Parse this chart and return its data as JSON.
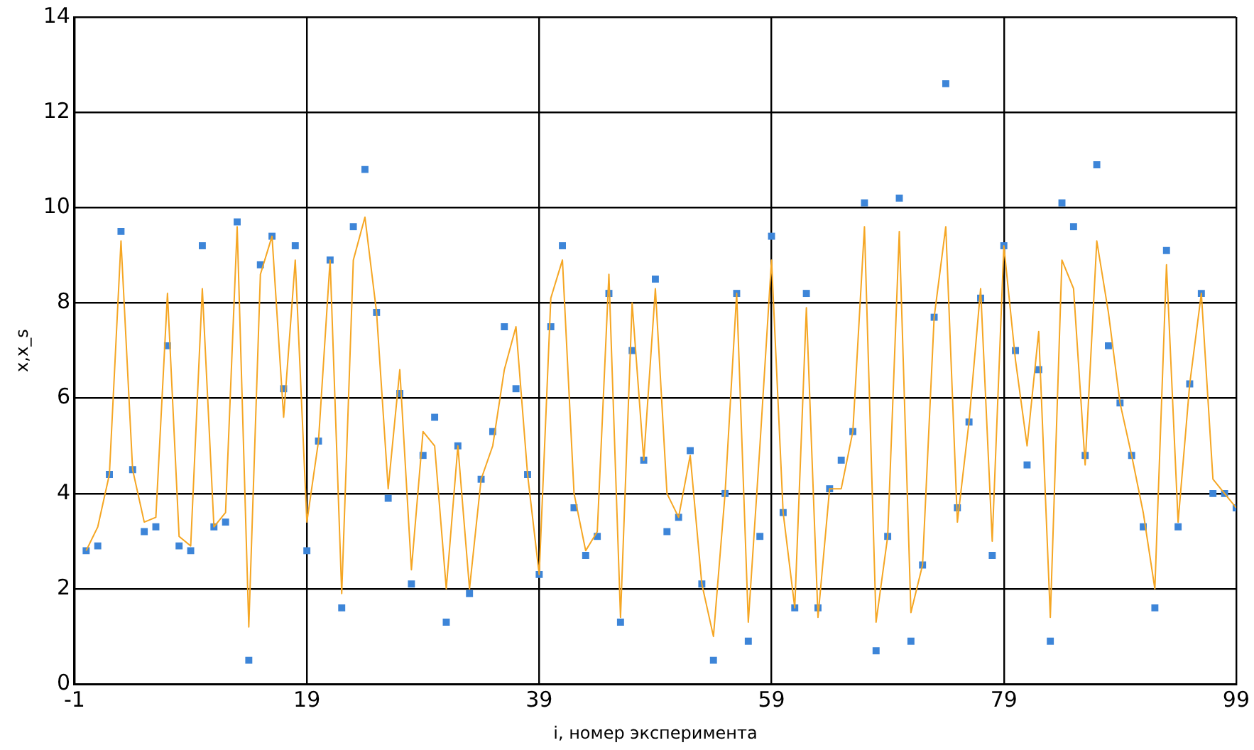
{
  "chart_data": {
    "type": "scatter",
    "xlabel": "i, номер эксперимента",
    "ylabel": "x,x_s",
    "grid": true,
    "legend": false,
    "xlim": [
      -1,
      99
    ],
    "xticks": [
      -1,
      19,
      39,
      59,
      79,
      99
    ],
    "ylim": [
      0,
      14
    ],
    "yticks": [
      0,
      2,
      4,
      6,
      8,
      10,
      12,
      14
    ],
    "x": [
      0,
      1,
      2,
      3,
      4,
      5,
      6,
      7,
      8,
      9,
      10,
      11,
      12,
      13,
      14,
      15,
      16,
      17,
      18,
      19,
      20,
      21,
      22,
      23,
      24,
      25,
      26,
      27,
      28,
      29,
      30,
      31,
      32,
      33,
      34,
      35,
      36,
      37,
      38,
      39,
      40,
      41,
      42,
      43,
      44,
      45,
      46,
      47,
      48,
      49,
      50,
      51,
      52,
      53,
      54,
      55,
      56,
      57,
      58,
      59,
      60,
      61,
      62,
      63,
      64,
      65,
      66,
      67,
      68,
      69,
      70,
      71,
      72,
      73,
      74,
      75,
      76,
      77,
      78,
      79,
      80,
      81,
      82,
      83,
      84,
      85,
      86,
      87,
      88,
      89,
      90,
      91,
      92,
      93,
      94,
      95,
      96,
      97,
      98,
      99
    ],
    "series": [
      {
        "type": "line",
        "color": "#f5a623",
        "marker": "none",
        "values": [
          2.8,
          3.3,
          4.4,
          9.3,
          4.5,
          3.4,
          3.5,
          8.2,
          3.1,
          2.9,
          8.3,
          3.3,
          3.6,
          9.6,
          1.2,
          8.6,
          9.4,
          5.6,
          8.9,
          3.4,
          5.1,
          8.9,
          1.9,
          8.9,
          9.8,
          7.8,
          4.1,
          6.6,
          2.4,
          5.3,
          5.0,
          2.0,
          5.0,
          2.0,
          4.3,
          5.0,
          6.6,
          7.5,
          4.4,
          2.3,
          8.1,
          8.9,
          4.0,
          2.8,
          3.2,
          8.6,
          1.4,
          8.0,
          4.7,
          8.3,
          4.0,
          3.5,
          4.8,
          2.1,
          1.0,
          4.0,
          8.2,
          1.3,
          5.0,
          8.9,
          3.6,
          1.6,
          7.9,
          1.4,
          4.1,
          4.1,
          5.3,
          9.6,
          1.3,
          3.1,
          9.5,
          1.5,
          2.5,
          7.7,
          9.6,
          3.4,
          5.5,
          8.3,
          3.0,
          9.2,
          6.8,
          5.0,
          7.4,
          1.4,
          8.9,
          8.3,
          4.6,
          9.3,
          7.8,
          5.9,
          4.8,
          3.6,
          2.0,
          8.8,
          3.4,
          6.3,
          8.2,
          4.3,
          4.0,
          3.7
        ]
      },
      {
        "type": "scatter",
        "color": "#3d85d8",
        "marker": "square",
        "values": [
          2.8,
          2.9,
          4.4,
          9.5,
          4.5,
          3.2,
          3.3,
          7.1,
          2.9,
          2.8,
          9.2,
          3.3,
          3.4,
          9.7,
          0.5,
          8.8,
          9.4,
          6.2,
          9.2,
          2.8,
          5.1,
          8.9,
          1.6,
          9.6,
          10.8,
          7.8,
          3.9,
          6.1,
          2.1,
          4.8,
          5.6,
          1.3,
          5.0,
          1.9,
          4.3,
          5.3,
          7.5,
          6.2,
          4.4,
          2.3,
          7.5,
          9.2,
          3.7,
          2.7,
          3.1,
          8.2,
          1.3,
          7.0,
          4.7,
          8.5,
          3.2,
          3.5,
          4.9,
          2.1,
          0.5,
          4.0,
          8.2,
          0.9,
          3.1,
          9.4,
          3.6,
          1.6,
          8.2,
          1.6,
          4.1,
          4.7,
          5.3,
          10.1,
          0.7,
          3.1,
          10.2,
          0.9,
          2.5,
          7.7,
          12.6,
          3.7,
          5.5,
          8.1,
          2.7,
          9.2,
          7.0,
          4.6,
          6.6,
          0.9,
          10.1,
          9.6,
          4.8,
          10.9,
          7.1,
          5.9,
          4.8,
          3.3,
          1.6,
          9.1,
          3.3,
          6.3,
          8.2,
          4.0,
          4.0,
          3.7
        ]
      }
    ]
  }
}
